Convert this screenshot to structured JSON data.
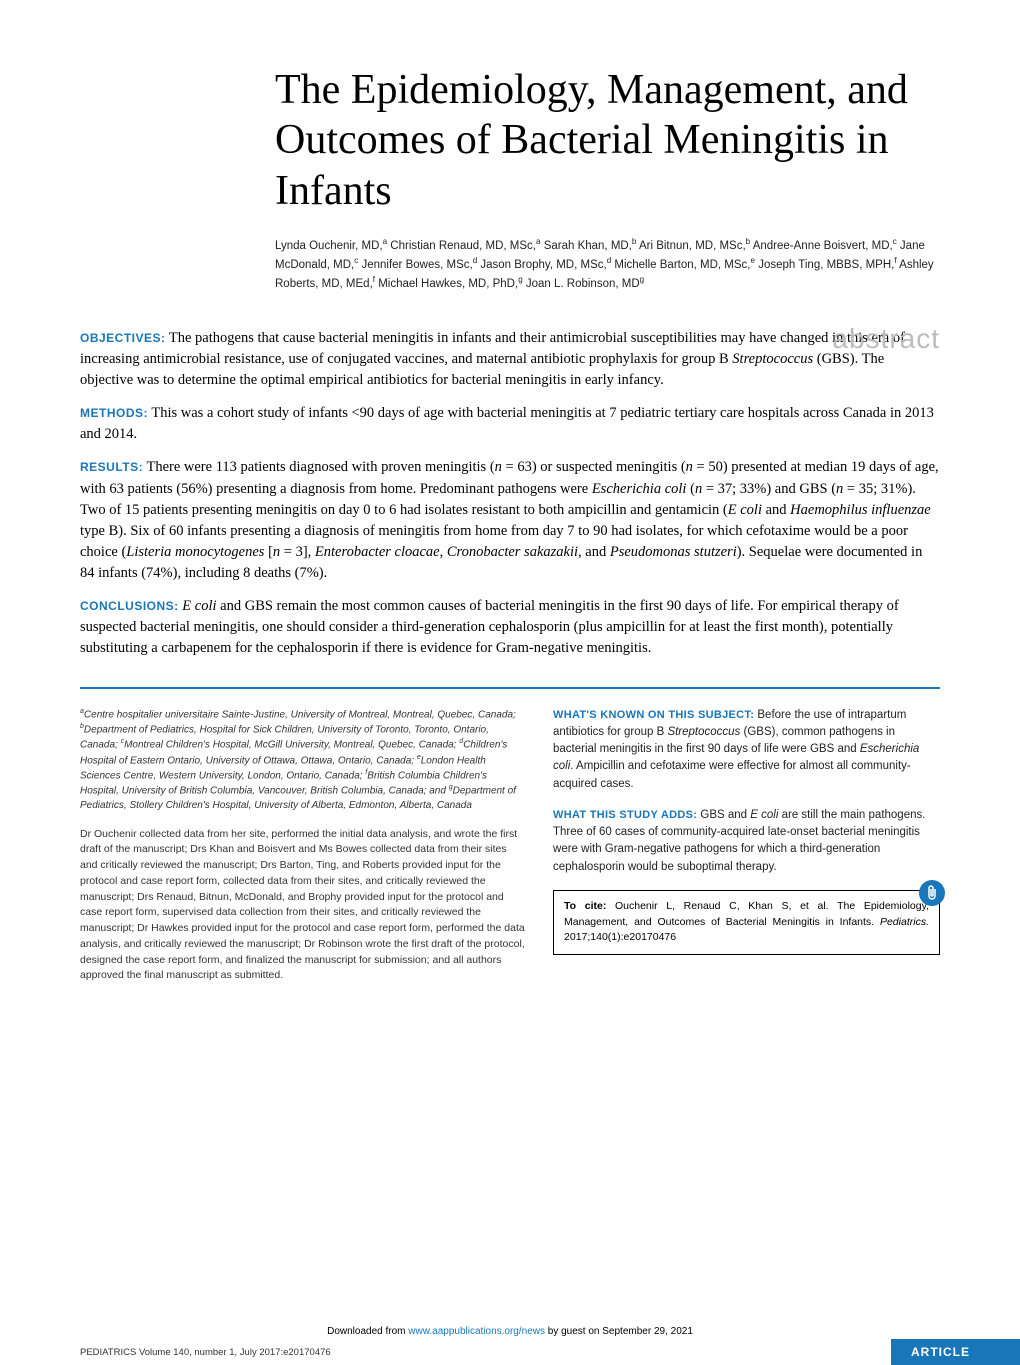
{
  "title": "The Epidemiology, Management, and Outcomes of Bacterial Meningitis in Infants",
  "authors_html": "Lynda Ouchenir, MD,<sup>a</sup> Christian Renaud, MD, MSc,<sup>a</sup> Sarah Khan, MD,<sup>b</sup> Ari Bitnun, MD, MSc,<sup>b</sup> Andree-Anne Boisvert, MD,<sup>c</sup> Jane McDonald, MD,<sup>c</sup> Jennifer Bowes, MSc,<sup>d</sup> Jason Brophy, MD, MSc,<sup>d</sup> Michelle Barton, MD, MSc,<sup>e</sup> Joseph Ting, MBBS, MPH,<sup>f</sup> Ashley Roberts, MD, MEd,<sup>f</sup> Michael Hawkes, MD, PhD,<sup>g</sup> Joan L. Robinson, MD<sup>g</sup>",
  "abstract_label": "abstract",
  "sections": {
    "objectives": {
      "label": "OBJECTIVES:",
      "text_html": " The pathogens that cause bacterial meningitis in infants and their antimicrobial susceptibilities may have changed in this era of increasing antimicrobial resistance, use of conjugated vaccines, and maternal antibiotic prophylaxis for group B <span class=\"italic\">Streptococcus</span> (GBS). The objective was to determine the optimal empirical antibiotics for bacterial meningitis in early infancy."
    },
    "methods": {
      "label": "METHODS:",
      "text_html": " This was a cohort study of infants &lt;90 days of age with bacterial meningitis at 7 pediatric tertiary care hospitals across Canada in 2013 and 2014."
    },
    "results": {
      "label": "RESULTS:",
      "text_html": " There were 113 patients diagnosed with proven meningitis (<span class=\"italic\">n</span> = 63) or suspected meningitis (<span class=\"italic\">n</span> = 50) presented at median 19 days of age, with 63 patients (56%) presenting a diagnosis from home. Predominant pathogens were <span class=\"italic\">Escherichia coli</span> (<span class=\"italic\">n</span> = 37; 33%) and GBS (<span class=\"italic\">n</span> = 35; 31%). Two of 15 patients presenting meningitis on day 0 to 6 had isolates resistant to both ampicillin and gentamicin (<span class=\"italic\">E coli</span> and <span class=\"italic\">Haemophilus influenzae</span> type B). Six of 60 infants presenting a diagnosis of meningitis from home from day 7 to 90 had isolates, for which cefotaxime would be a poor choice (<span class=\"italic\">Listeria monocytogenes</span> [<span class=\"italic\">n</span> = 3], <span class=\"italic\">Enterobacter cloacae</span>, <span class=\"italic\">Cronobacter sakazakii</span>, and <span class=\"italic\">Pseudomonas stutzeri</span>). Sequelae were documented in 84 infants (74%), including 8 deaths (7%)."
    },
    "conclusions": {
      "label": "CONCLUSIONS:",
      "text_html": " <span class=\"italic\">E coli</span> and GBS remain the most common causes of bacterial meningitis in the first 90 days of life. For empirical therapy of suspected bacterial meningitis, one should consider a third-generation cephalosporin (plus ampicillin for at least the first month), potentially substituting a carbapenem for the cephalosporin if there is evidence for Gram-negative meningitis."
    }
  },
  "affiliations_html": "<sup>a</sup>Centre hospitalier universitaire Sainte-Justine, University of Montreal, Montreal, Quebec, Canada; <sup>b</sup>Department of Pediatrics, Hospital for Sick Children, University of Toronto, Toronto, Ontario, Canada; <sup>c</sup>Montreal Children's Hospital, McGill University, Montreal, Quebec, Canada; <sup>d</sup>Children's Hospital of Eastern Ontario, University of Ottawa, Ottawa, Ontario, Canada; <sup>e</sup>London Health Sciences Centre, Western University, London, Ontario, Canada; <sup>f</sup>British Columbia Children's Hospital, University of British Columbia, Vancouver, British Columbia, Canada; and <sup>g</sup>Department of Pediatrics, Stollery Children's Hospital, University of Alberta, Edmonton, Alberta, Canada",
  "contributions": "Dr Ouchenir collected data from her site, performed the initial data analysis, and wrote the first draft of the manuscript; Drs Khan and Boisvert and Ms Bowes collected data from their sites and critically reviewed the manuscript; Drs Barton, Ting, and Roberts provided input for the protocol and case report form, collected data from their sites, and critically reviewed the manuscript; Drs Renaud, Bitnun, McDonald, and Brophy provided input for the protocol and case report form, supervised data collection from their sites, and critically reviewed the manuscript; Dr Hawkes provided input for the protocol and case report form, performed the data analysis, and critically reviewed the manuscript; Dr Robinson wrote the first draft of the protocol, designed the case report form, and finalized the manuscript for submission; and all authors approved the final manuscript as submitted.",
  "sidebar": {
    "known": {
      "label": "WHAT'S KNOWN ON THIS SUBJECT:",
      "text_html": " Before the use of intrapartum antibiotics for group B <span class=\"italic\">Streptococcus</span> (GBS), common pathogens in bacterial meningitis in the first 90 days of life were GBS and <span class=\"italic\">Escherichia coli</span>. Ampicillin and cefotaxime were effective for almost all community-acquired cases."
    },
    "adds": {
      "label": "WHAT THIS STUDY ADDS:",
      "text_html": " GBS and <span class=\"italic\">E coli</span> are still the main pathogens. Three of 60 cases of community-acquired late-onset bacterial meningitis were with Gram-negative pathogens for which a third-generation cephalosporin would be suboptimal therapy."
    }
  },
  "cite": {
    "label": "To cite:",
    "text_html": " Ouchenir L, Renaud C, Khan S, et al. The Epidemiology, Management, and Outcomes of Bacterial Meningitis in Infants. <span class=\"italic\">Pediatrics.</span> 2017;140(1):e20170476"
  },
  "footer": {
    "download_prefix": "Downloaded from ",
    "download_link": "www.aappublications.org/news",
    "download_suffix": " by guest on September 29, 2021",
    "journal_info": "PEDIATRICS Volume 140, number 1, July 2017:e20170476",
    "article_label": "ARTICLE"
  },
  "colors": {
    "accent": "#1976b8",
    "abstract_label": "#bcbcbc"
  }
}
